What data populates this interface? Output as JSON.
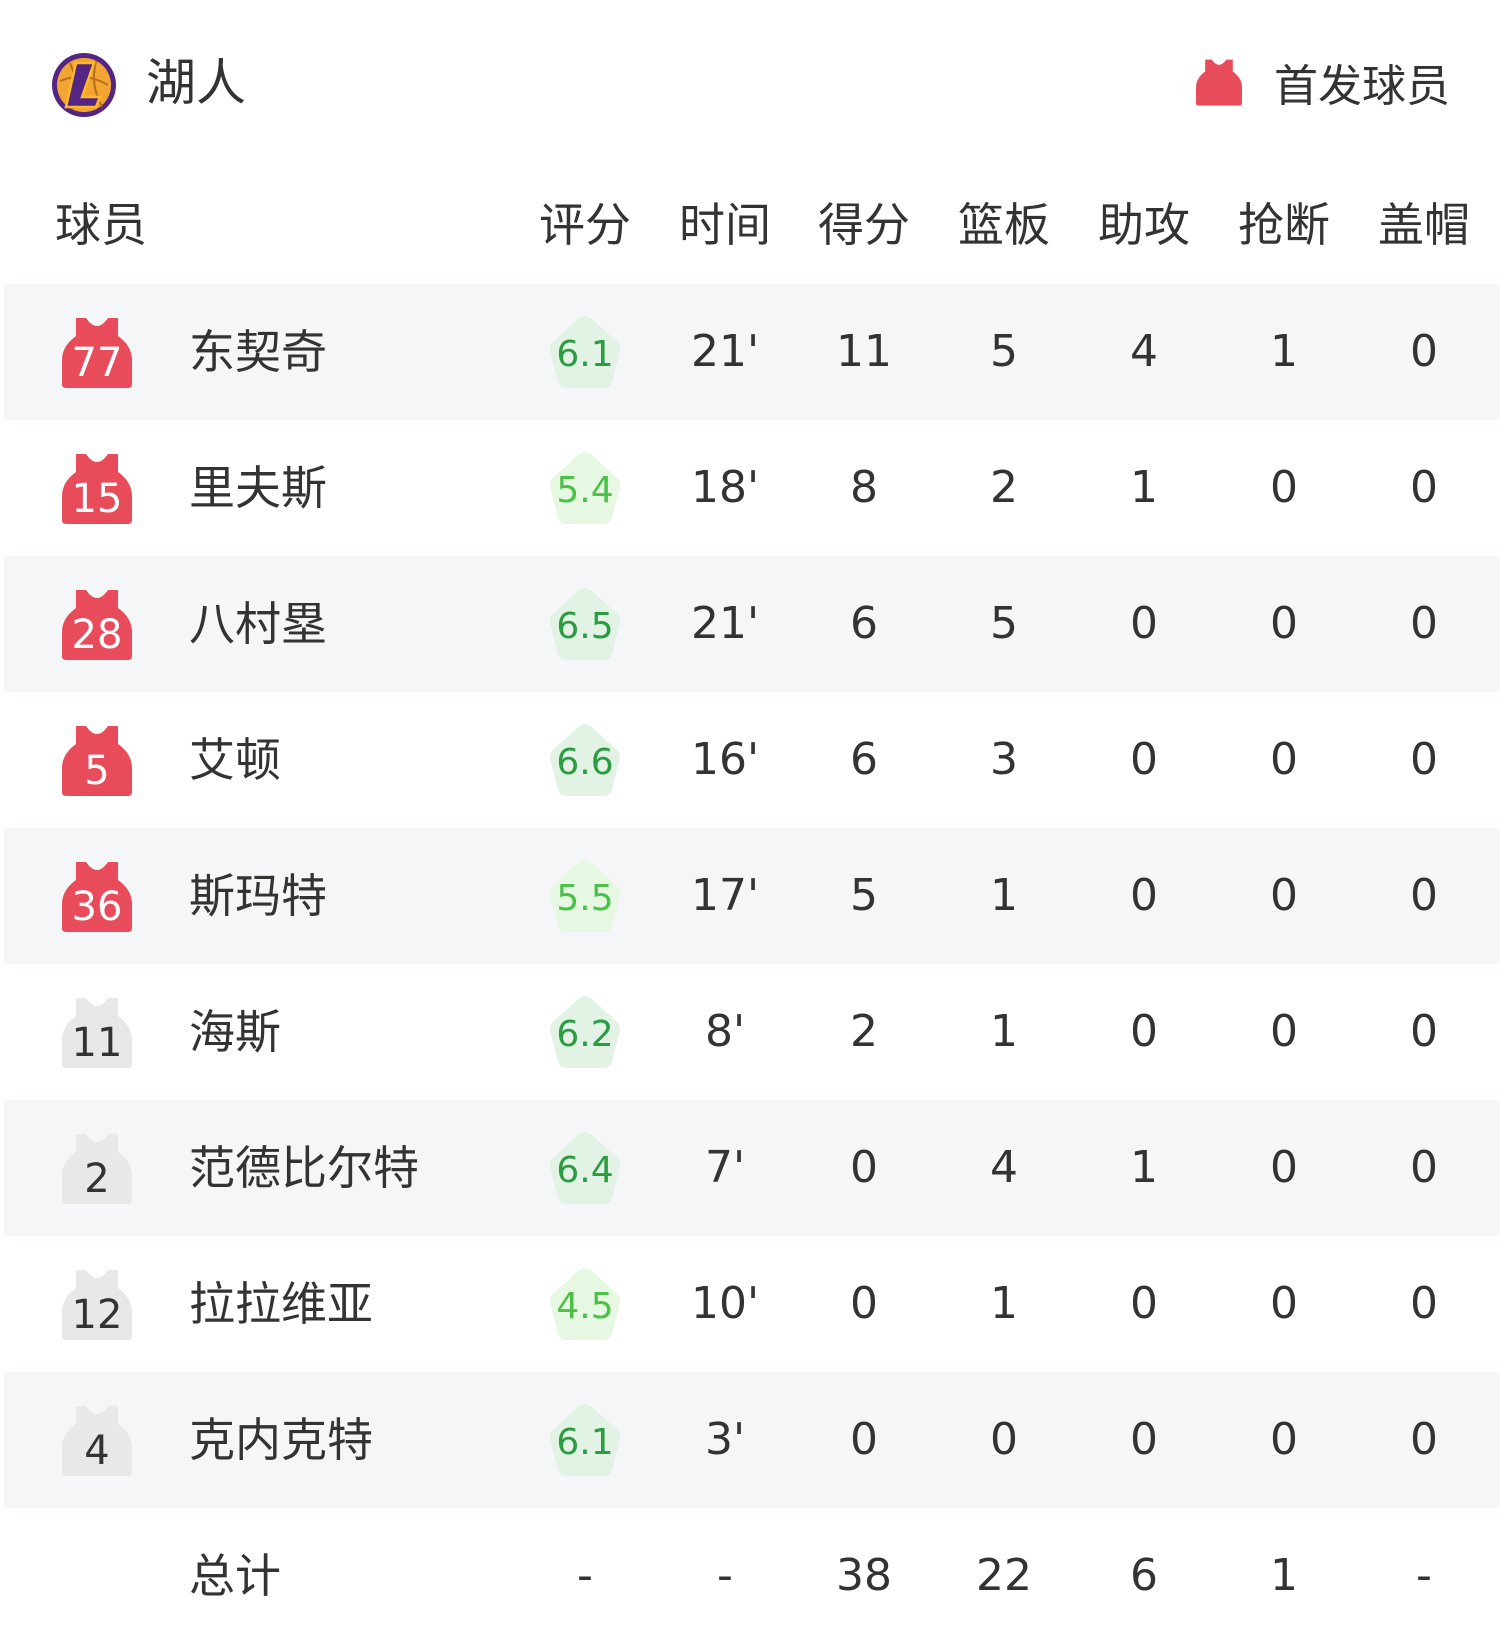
{
  "team": {
    "name": "湖人",
    "logo_icon": "lakers-logo"
  },
  "legend": {
    "label": "首发球员",
    "icon": "jersey-icon",
    "color": "#e84c5a"
  },
  "colors": {
    "starter": "#e84c5a",
    "bench": "#e8e8e8",
    "rating_high_bg": "#e2f2e5",
    "rating_high_text": "#2a9d40",
    "rating_low_bg": "#e6f7e2",
    "rating_low_text": "#4cc24a"
  },
  "columns": {
    "player": "球员",
    "rating": "评分",
    "time": "时间",
    "points": "得分",
    "rebounds": "篮板",
    "assists": "助攻",
    "steals": "抢断",
    "blocks": "盖帽"
  },
  "players": [
    {
      "number": "77",
      "name": "东契奇",
      "starter": true,
      "rating": "6.1",
      "time": "21'",
      "points": "11",
      "rebounds": "5",
      "assists": "4",
      "steals": "1",
      "blocks": "0"
    },
    {
      "number": "15",
      "name": "里夫斯",
      "starter": true,
      "rating": "5.4",
      "time": "18'",
      "points": "8",
      "rebounds": "2",
      "assists": "1",
      "steals": "0",
      "blocks": "0"
    },
    {
      "number": "28",
      "name": "八村塁",
      "starter": true,
      "rating": "6.5",
      "time": "21'",
      "points": "6",
      "rebounds": "5",
      "assists": "0",
      "steals": "0",
      "blocks": "0"
    },
    {
      "number": "5",
      "name": "艾顿",
      "starter": true,
      "rating": "6.6",
      "time": "16'",
      "points": "6",
      "rebounds": "3",
      "assists": "0",
      "steals": "0",
      "blocks": "0"
    },
    {
      "number": "36",
      "name": "斯玛特",
      "starter": true,
      "rating": "5.5",
      "time": "17'",
      "points": "5",
      "rebounds": "1",
      "assists": "0",
      "steals": "0",
      "blocks": "0"
    },
    {
      "number": "11",
      "name": "海斯",
      "starter": false,
      "rating": "6.2",
      "time": "8'",
      "points": "2",
      "rebounds": "1",
      "assists": "0",
      "steals": "0",
      "blocks": "0"
    },
    {
      "number": "2",
      "name": "范德比尔特",
      "starter": false,
      "rating": "6.4",
      "time": "7'",
      "points": "0",
      "rebounds": "4",
      "assists": "1",
      "steals": "0",
      "blocks": "0"
    },
    {
      "number": "12",
      "name": "拉拉维亚",
      "starter": false,
      "rating": "4.5",
      "time": "10'",
      "points": "0",
      "rebounds": "1",
      "assists": "0",
      "steals": "0",
      "blocks": "0"
    },
    {
      "number": "4",
      "name": "克内克特",
      "starter": false,
      "rating": "6.1",
      "time": "3'",
      "points": "0",
      "rebounds": "0",
      "assists": "0",
      "steals": "0",
      "blocks": "0"
    }
  ],
  "totals": {
    "label": "总计",
    "rating": "-",
    "time": "-",
    "points": "38",
    "rebounds": "22",
    "assists": "6",
    "steals": "1",
    "blocks": "-"
  }
}
